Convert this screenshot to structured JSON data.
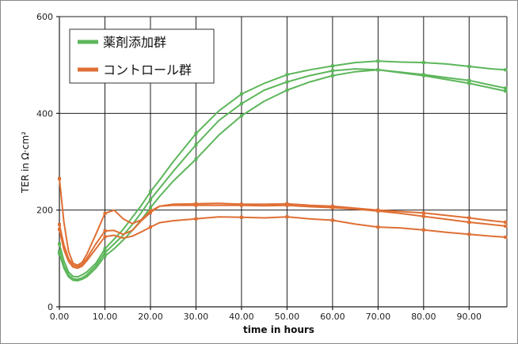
{
  "chart_data": {
    "type": "line",
    "xlabel": "time in hours",
    "ylabel": "TER in Ω·cm²",
    "xlim": [
      0,
      98.3
    ],
    "ylim": [
      0,
      600
    ],
    "grid": true,
    "x_ticks": [
      0,
      10,
      20,
      30,
      40,
      50,
      60,
      70,
      80,
      90
    ],
    "x_tick_labels": [
      "0.00",
      "10.00",
      "20.00",
      "30.00",
      "40.00",
      "50.00",
      "60.00",
      "70.00",
      "80.00",
      "90.00"
    ],
    "y_ticks": [
      0,
      200,
      400,
      600
    ],
    "y_tick_labels": [
      "0",
      "200",
      "400",
      "600"
    ],
    "legend": {
      "position": "top-left",
      "entries": [
        {
          "label": "薬剤添加群",
          "color": "#5db65b"
        },
        {
          "label": "コントロール群",
          "color": "#df6f35"
        }
      ]
    },
    "marker_x": [
      0,
      10,
      20,
      30,
      40,
      50,
      60,
      70,
      80,
      90,
      98
    ],
    "x": [
      0,
      1,
      2,
      3,
      4,
      5,
      6,
      8,
      10,
      12,
      14,
      16,
      18,
      20,
      22,
      25,
      30,
      35,
      40,
      45,
      50,
      55,
      60,
      65,
      70,
      75,
      80,
      85,
      90,
      95,
      98
    ],
    "series": [
      {
        "legend_index": 0,
        "color": "#5db65b",
        "values": [
          130,
          95,
          72,
          63,
          62,
          66,
          72,
          90,
          120,
          140,
          160,
          185,
          210,
          238,
          262,
          300,
          358,
          405,
          440,
          462,
          480,
          490,
          498,
          505,
          508,
          506,
          505,
          502,
          497,
          492,
          490
        ]
      },
      {
        "legend_index": 0,
        "color": "#5db65b",
        "values": [
          115,
          85,
          66,
          58,
          57,
          60,
          66,
          85,
          112,
          130,
          148,
          170,
          195,
          222,
          245,
          280,
          335,
          385,
          420,
          448,
          465,
          478,
          488,
          492,
          490,
          485,
          480,
          474,
          468,
          458,
          452
        ]
      },
      {
        "legend_index": 0,
        "color": "#5db65b",
        "values": [
          110,
          80,
          62,
          55,
          54,
          57,
          62,
          80,
          105,
          120,
          138,
          158,
          180,
          205,
          228,
          260,
          305,
          355,
          395,
          425,
          448,
          465,
          478,
          486,
          490,
          484,
          478,
          470,
          462,
          452,
          446
        ]
      },
      {
        "legend_index": 1,
        "color": "#df6f35",
        "values": [
          265,
          175,
          115,
          90,
          86,
          92,
          108,
          150,
          193,
          200,
          182,
          172,
          180,
          198,
          208,
          212,
          213,
          214,
          212,
          212,
          213,
          210,
          208,
          204,
          200,
          197,
          194,
          189,
          184,
          178,
          175
        ]
      },
      {
        "legend_index": 1,
        "color": "#df6f35",
        "values": [
          170,
          128,
          100,
          86,
          83,
          88,
          100,
          130,
          157,
          158,
          150,
          158,
          178,
          195,
          208,
          210,
          210,
          210,
          210,
          209,
          210,
          207,
          205,
          202,
          198,
          193,
          187,
          181,
          175,
          170,
          167
        ]
      },
      {
        "legend_index": 1,
        "color": "#df6f35",
        "values": [
          160,
          118,
          94,
          82,
          80,
          84,
          95,
          120,
          145,
          148,
          142,
          146,
          155,
          165,
          174,
          178,
          182,
          186,
          185,
          184,
          186,
          182,
          179,
          171,
          165,
          163,
          159,
          154,
          150,
          146,
          144
        ]
      }
    ]
  }
}
